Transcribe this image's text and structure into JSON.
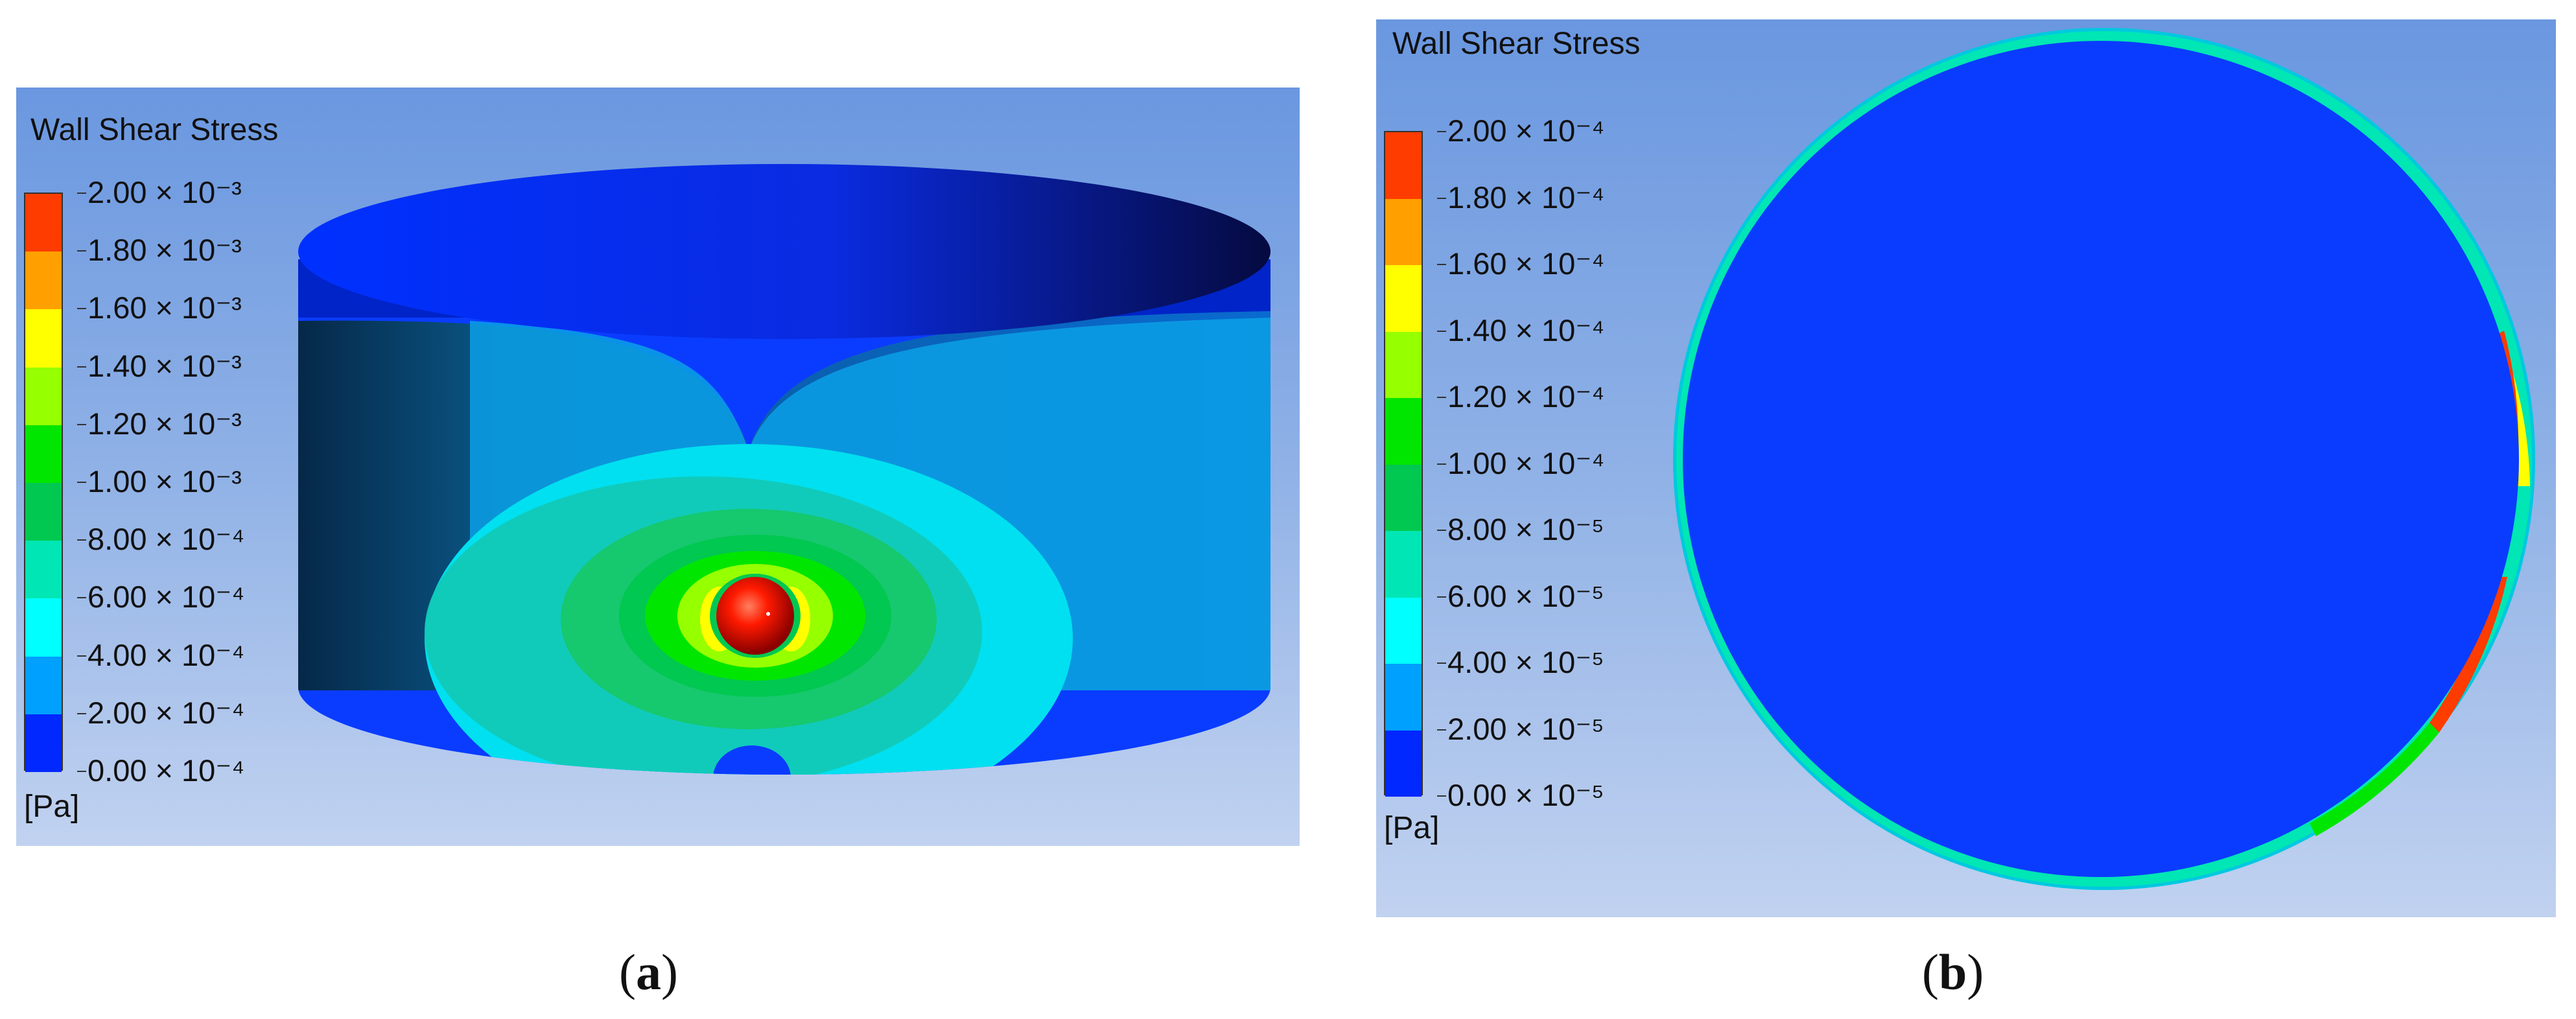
{
  "panel_a": {
    "legend": {
      "title": "Wall Shear Stress",
      "unit": "[Pa]",
      "ticks": [
        "2.00 × 10⁻³",
        "1.80 × 10⁻³",
        "1.60 × 10⁻³",
        "1.40 × 10⁻³",
        "1.20 × 10⁻³",
        "1.00 × 10⁻³",
        "8.00 × 10⁻⁴",
        "6.00 × 10⁻⁴",
        "4.00 × 10⁻⁴",
        "2.00 × 10⁻⁴",
        "0.00 × 10⁻⁴"
      ]
    },
    "caption": {
      "open": "(",
      "letter": "a",
      "close": ")"
    }
  },
  "panel_b": {
    "legend": {
      "title": "Wall Shear Stress",
      "unit": "[Pa]",
      "ticks": [
        "2.00 × 10⁻⁴",
        "1.80 × 10⁻⁴",
        "1.60 × 10⁻⁴",
        "1.40 × 10⁻⁴",
        "1.20 × 10⁻⁴",
        "1.00 × 10⁻⁴",
        "8.00 × 10⁻⁵",
        "6.00 × 10⁻⁵",
        "4.00 × 10⁻⁵",
        "2.00 × 10⁻⁵",
        "0.00 × 10⁻⁵"
      ]
    },
    "caption": {
      "open": "(",
      "letter": "b",
      "close": ")"
    }
  },
  "colormap": [
    "#ff3c00",
    "#ffa000",
    "#ffff00",
    "#96ff00",
    "#00e600",
    "#00c850",
    "#00e6b4",
    "#00ffff",
    "#00a0ff",
    "#0028ff"
  ]
}
